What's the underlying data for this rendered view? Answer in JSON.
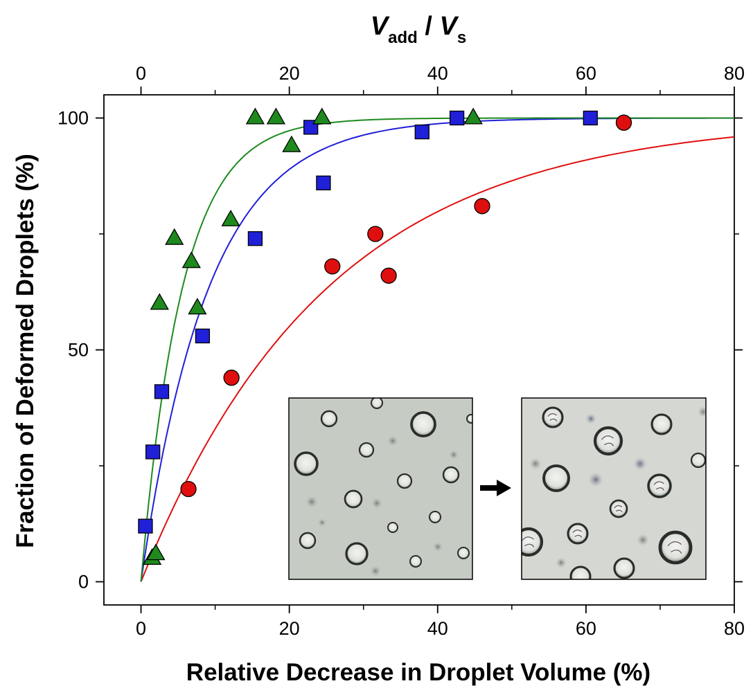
{
  "chart_data": {
    "type": "scatter",
    "xlabel": "Relative Decrease in Droplet Volume (%)",
    "ylabel": "Fraction of Deformed Droplets (%)",
    "x2label": {
      "main1": "V",
      "sub1": "add",
      "sep": " / ",
      "main2": "V",
      "sub2": "s"
    },
    "xlim": [
      -5,
      80
    ],
    "ylim": [
      -5,
      105
    ],
    "x_ticks": [
      0,
      20,
      40,
      60,
      80
    ],
    "x2_ticks": [
      0,
      20,
      40,
      60,
      80
    ],
    "y_ticks": [
      0,
      50,
      100
    ],
    "grid": false,
    "series": [
      {
        "marker": "triangle",
        "color": "#1e8a1e",
        "x": [
          1.5,
          2.0,
          2.5,
          4.5,
          6.8,
          7.6,
          12.1,
          15.4,
          18.2,
          20.3,
          24.4,
          44.8
        ],
        "y": [
          5,
          6,
          60,
          74,
          69,
          59,
          78,
          100,
          100,
          94,
          100,
          100
        ],
        "fit": {
          "type": "saturating_exponential",
          "ymax": 100,
          "k": 0.18
        }
      },
      {
        "marker": "square",
        "color": "#2020d8",
        "x": [
          0.6,
          1.6,
          2.8,
          8.3,
          15.4,
          22.9,
          24.6,
          37.9,
          42.6,
          60.6
        ],
        "y": [
          12,
          28,
          41,
          53,
          74,
          98,
          86,
          97,
          100,
          100
        ],
        "fit": {
          "type": "saturating_exponential",
          "ymax": 100,
          "k": 0.11
        }
      },
      {
        "marker": "circle",
        "color": "#e00f0f",
        "x": [
          6.4,
          12.2,
          25.8,
          31.6,
          33.4,
          46.0,
          65.1
        ],
        "y": [
          20,
          44,
          68,
          75,
          66,
          81,
          99
        ],
        "fit": {
          "type": "saturating_exponential",
          "ymax": 100,
          "k": 0.04
        }
      }
    ]
  },
  "inset": {
    "arrow_glyph": "→",
    "before_image": "droplets-before-micrograph",
    "after_image": "droplets-after-micrograph"
  }
}
